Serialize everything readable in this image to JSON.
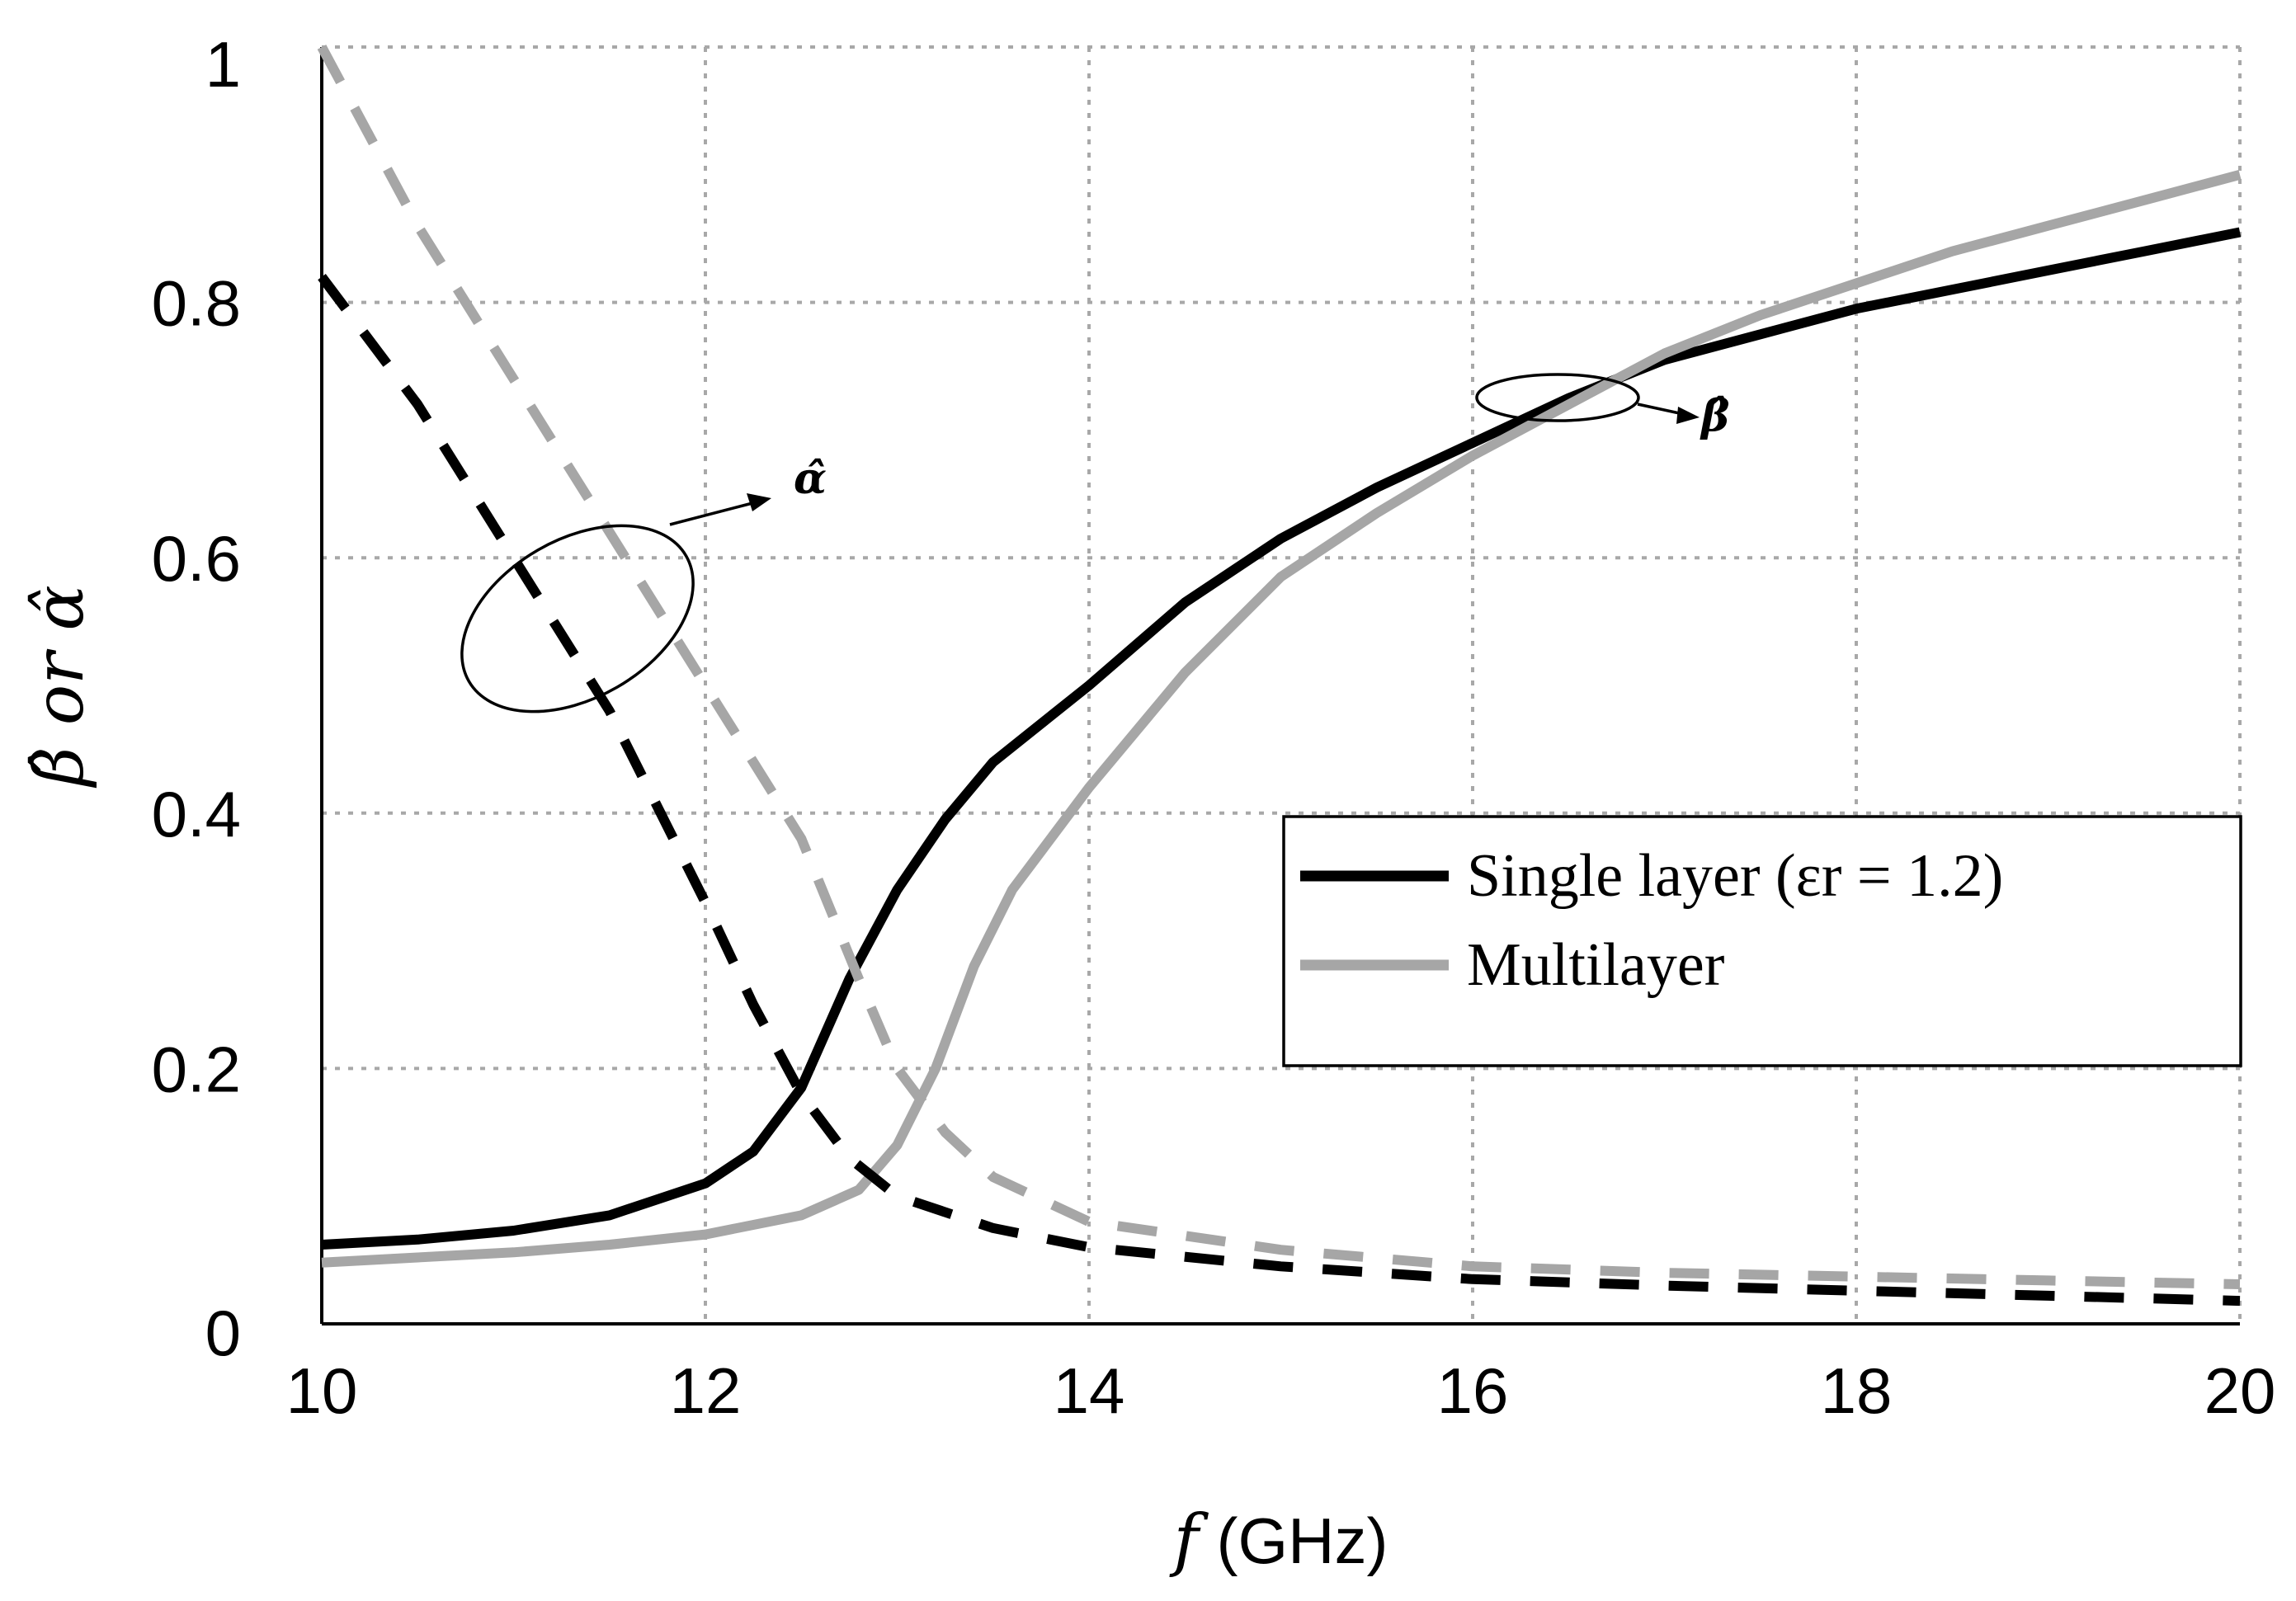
{
  "chart_data": {
    "type": "line",
    "title": "",
    "xlabel_var": "f",
    "xlabel_unit": "(GHz)",
    "ylabel": "β̂ or α̂",
    "xlim": [
      10,
      20
    ],
    "ylim": [
      0,
      1
    ],
    "xticks": [
      10,
      12,
      14,
      16,
      18,
      20
    ],
    "yticks": [
      0,
      0.2,
      0.4,
      0.6,
      0.8,
      1
    ],
    "xtick_labels": [
      "10",
      "12",
      "14",
      "16",
      "18",
      "20"
    ],
    "ytick_labels": [
      "0",
      "0.2",
      "0.4",
      "0.6",
      "0.8",
      "1"
    ],
    "grid": true,
    "legend_position": "center-right",
    "legend": [
      {
        "label": "Single layer (εr = 1.2)",
        "color": "#000000"
      },
      {
        "label": "Multilayer",
        "color": "#a6a6a6"
      }
    ],
    "annotations": [
      {
        "text": "α̂",
        "target": "alpha curves (dashed)"
      },
      {
        "text": "β̂",
        "target": "beta curves (solid)"
      }
    ],
    "series": [
      {
        "name": "Single layer beta",
        "quantity": "beta",
        "style": "solid",
        "color": "#000000",
        "x": [
          10,
          10.5,
          11,
          11.5,
          12,
          12.25,
          12.5,
          12.75,
          13,
          13.25,
          13.5,
          14,
          14.5,
          15,
          15.5,
          16,
          16.5,
          17,
          17.5,
          18,
          18.5,
          19,
          19.5,
          20
        ],
        "y": [
          0.062,
          0.066,
          0.073,
          0.085,
          0.11,
          0.135,
          0.185,
          0.27,
          0.34,
          0.395,
          0.44,
          0.5,
          0.565,
          0.615,
          0.655,
          0.69,
          0.725,
          0.755,
          0.775,
          0.795,
          0.81,
          0.825,
          0.84,
          0.855
        ]
      },
      {
        "name": "Multilayer beta",
        "quantity": "beta",
        "style": "solid",
        "color": "#a6a6a6",
        "x": [
          10,
          10.5,
          11,
          11.5,
          12,
          12.5,
          12.8,
          13,
          13.2,
          13.4,
          13.6,
          14,
          14.5,
          15,
          15.5,
          16,
          16.5,
          17,
          17.5,
          18,
          18.5,
          19,
          19.5,
          20
        ],
        "y": [
          0.048,
          0.052,
          0.056,
          0.062,
          0.07,
          0.085,
          0.105,
          0.14,
          0.2,
          0.28,
          0.34,
          0.42,
          0.51,
          0.585,
          0.635,
          0.68,
          0.72,
          0.76,
          0.79,
          0.815,
          0.84,
          0.86,
          0.88,
          0.9
        ]
      },
      {
        "name": "Single layer alpha",
        "quantity": "alpha",
        "style": "dashed",
        "color": "#000000",
        "x": [
          10,
          10.5,
          11,
          11.5,
          12,
          12.25,
          12.5,
          12.75,
          13,
          13.5,
          14,
          15,
          16,
          17,
          18,
          19,
          20
        ],
        "y": [
          0.82,
          0.72,
          0.6,
          0.48,
          0.33,
          0.25,
          0.18,
          0.13,
          0.1,
          0.075,
          0.06,
          0.045,
          0.035,
          0.03,
          0.026,
          0.022,
          0.018
        ]
      },
      {
        "name": "Multilayer alpha",
        "quantity": "alpha",
        "style": "dashed",
        "color": "#a6a6a6",
        "x": [
          10,
          10.5,
          11,
          11.5,
          12,
          12.5,
          12.8,
          13,
          13.25,
          13.5,
          14,
          15,
          16,
          17,
          18,
          19,
          20
        ],
        "y": [
          1.0,
          0.86,
          0.74,
          0.62,
          0.5,
          0.38,
          0.27,
          0.2,
          0.15,
          0.115,
          0.08,
          0.058,
          0.045,
          0.04,
          0.037,
          0.034,
          0.031
        ]
      }
    ]
  }
}
